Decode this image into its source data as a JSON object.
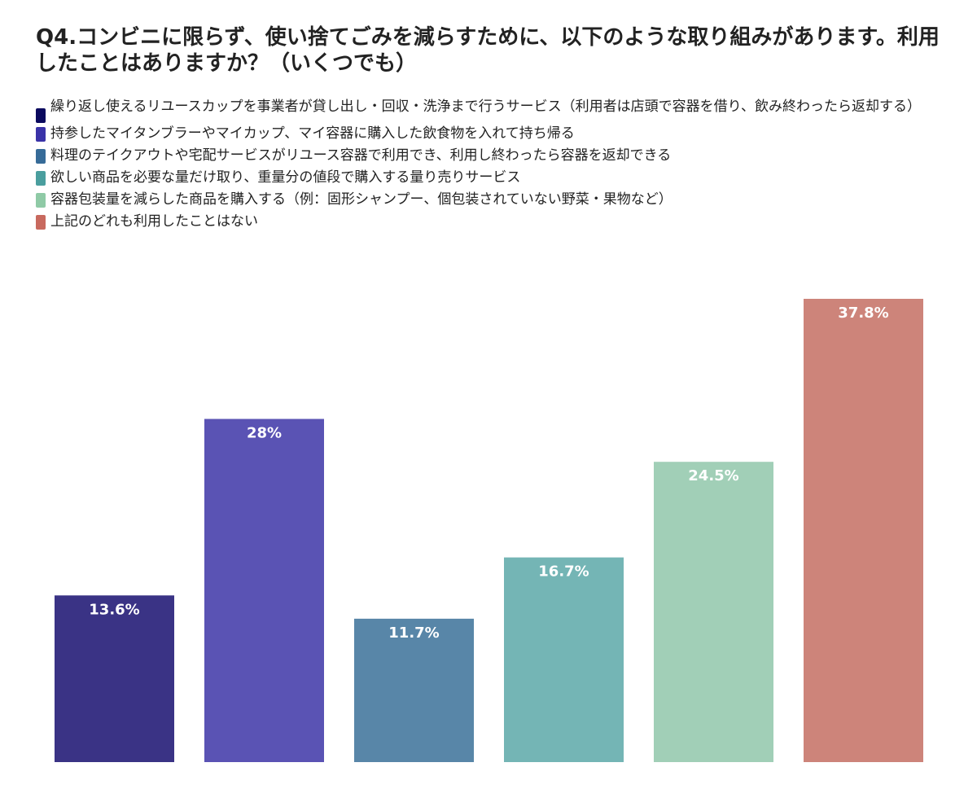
{
  "chart_data": {
    "type": "bar",
    "title": "Q4.コンビニに限らず、使い捨てごみを減らすために、以下のような取り組みがあります。利用したことはありますか？（いくつでも）",
    "categories": [
      "繰り返し使えるリユースカップを事業者が貸し出し・回収・洗浄まで行うサービス（利用者は店頭で容器を借り、飲み終わったら返却する）",
      "持参したマイタンブラーやマイカップ、マイ容器に購入した飲食物を入れて持ち帰る",
      "料理のテイクアウトや宅配サービスがリユース容器で利用でき、利用し終わったら容器を返却できる",
      "欲しい商品を必要な量だけ取り、重量分の値段で購入する量り売りサービス",
      "容器包装量を減らした商品を購入する（例：固形シャンプー、個包装されていない野菜・果物など）",
      "上記のどれも利用したことはない"
    ],
    "values": [
      13.6,
      28,
      11.7,
      16.7,
      24.5,
      37.8
    ],
    "value_labels": [
      "13.6%",
      "28%",
      "11.7%",
      "16.7%",
      "24.5%",
      "37.8%"
    ],
    "legend_colors": [
      "#0b0a5e",
      "#3a33a8",
      "#366b98",
      "#4a9e9e",
      "#8fcaa6",
      "#c8695e"
    ],
    "bar_colors": [
      "#3a3385",
      "#5a53b4",
      "#5886a8",
      "#74b5b5",
      "#a1cfb7",
      "#cd847a"
    ],
    "unit": "%",
    "ylim": [
      0,
      37.8
    ],
    "grid": false,
    "legend_position": "top-left"
  }
}
